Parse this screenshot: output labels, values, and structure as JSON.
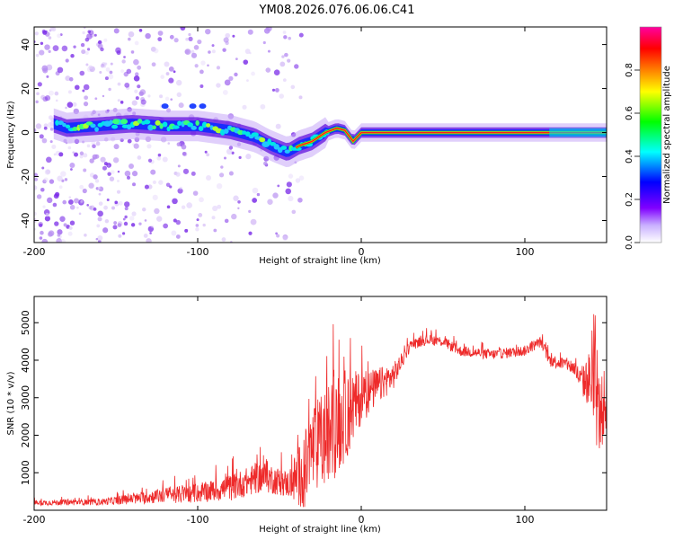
{
  "title": "YM08.2026.076.06.06.C41",
  "chart_data": [
    {
      "type": "heatmap",
      "xlabel": "Height of straight line (km)",
      "ylabel": "Frequency (Hz)",
      "xlim": [
        -200,
        150
      ],
      "ylim": [
        -50,
        48
      ],
      "xticks": [
        -200,
        -100,
        0,
        100
      ],
      "xtick_labels": [
        "-200",
        "-100",
        "0",
        "100"
      ],
      "yticks": [
        40,
        20,
        0,
        -20,
        -40
      ],
      "ytick_labels": [
        "40",
        "20",
        "0",
        "-20",
        "-40"
      ],
      "ridge": {
        "x": [
          -188,
          -180,
          -160,
          -140,
          -120,
          -100,
          -80,
          -65,
          -55,
          -45,
          -38,
          -30,
          -22,
          -15,
          -10,
          -5,
          0,
          10,
          30,
          60,
          100,
          130,
          150
        ],
        "freq": [
          4,
          2,
          3,
          4,
          3,
          3,
          1,
          -2,
          -6,
          -9,
          -6,
          -4,
          0,
          2,
          1,
          -4,
          0,
          0,
          0,
          0,
          0,
          0,
          0
        ]
      },
      "colorbar": {
        "label": "Normalized spectral amplitude",
        "range": [
          0,
          1
        ],
        "ticks": [
          0.0,
          0.2,
          0.4,
          0.6,
          0.8
        ],
        "tick_labels": [
          "0.0",
          "0.2",
          "0.4",
          "0.6",
          "0.8"
        ],
        "colors": [
          "#ffffff",
          "#8000ff",
          "#0000ff",
          "#00ffff",
          "#00ff00",
          "#ffff00",
          "#ff8000",
          "#ff0000",
          "#ff00a0"
        ]
      }
    },
    {
      "type": "line",
      "xlabel": "Height of straight line (km)",
      "ylabel": "SNR (10 * v/v)",
      "xlim": [
        -200,
        150
      ],
      "ylim": [
        0,
        5700
      ],
      "xticks": [
        -200,
        -100,
        0,
        100
      ],
      "xtick_labels": [
        "-200",
        "-100",
        "0",
        "100"
      ],
      "yticks": [
        1000,
        2000,
        3000,
        4000,
        5000
      ],
      "ytick_labels": [
        "1000",
        "2000",
        "3000",
        "4000",
        "5000"
      ],
      "color": "#ee2a2a",
      "envelope": {
        "x": [
          -200,
          -160,
          -140,
          -120,
          -100,
          -80,
          -60,
          -45,
          -35,
          -30,
          -20,
          -10,
          0,
          10,
          20,
          25,
          30,
          40,
          50,
          60,
          80,
          100,
          110,
          115,
          125,
          130,
          135,
          140,
          143,
          146,
          150
        ],
        "base": [
          200,
          220,
          300,
          400,
          450,
          600,
          900,
          700,
          1000,
          1600,
          2000,
          2500,
          3000,
          3300,
          3600,
          4000,
          4400,
          4550,
          4500,
          4250,
          4150,
          4250,
          4500,
          4000,
          3900,
          3800,
          3400,
          3500,
          3000,
          2500,
          3000
        ],
        "spread": [
          100,
          120,
          200,
          300,
          350,
          500,
          600,
          500,
          1500,
          1700,
          2000,
          1800,
          1000,
          700,
          500,
          300,
          200,
          200,
          200,
          200,
          200,
          200,
          200,
          250,
          250,
          300,
          500,
          1200,
          1800,
          1500,
          1200
        ]
      }
    }
  ]
}
